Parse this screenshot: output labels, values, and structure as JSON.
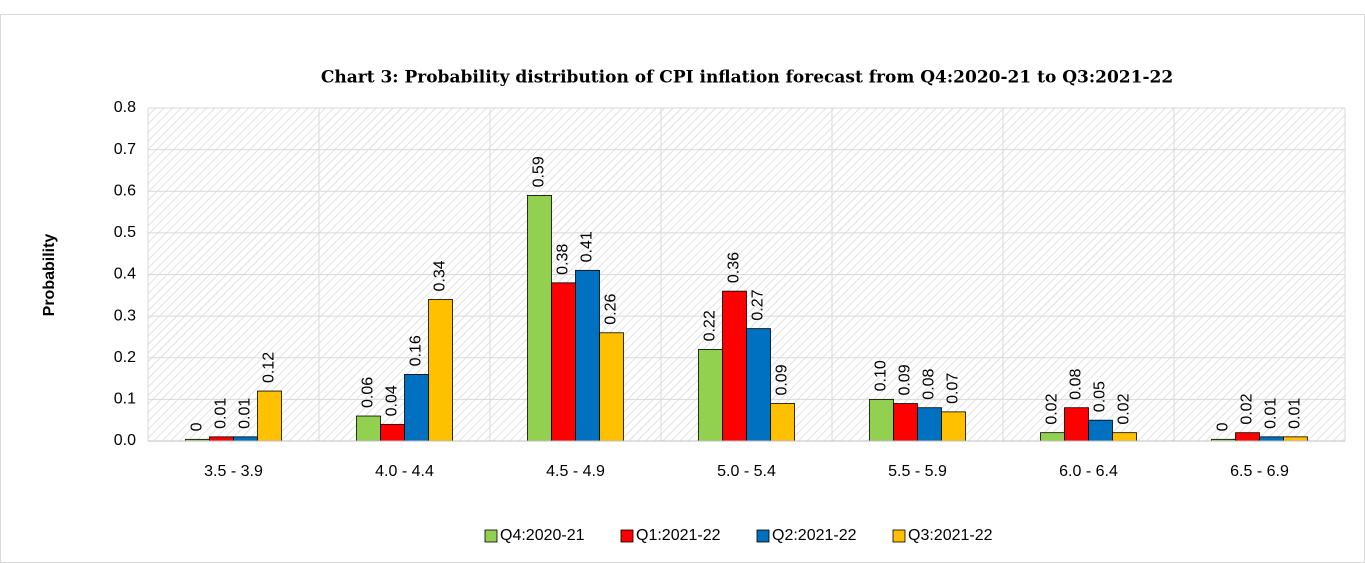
{
  "chart_data": {
    "type": "bar",
    "title": "Chart 3: Probability distribution of  CPI inflation forecast from Q4:2020-21 to Q3:2021-22",
    "y_label": "Probability",
    "categories": [
      "3.5 - 3.9",
      "4.0 - 4.4",
      "4.5 - 4.9",
      "5.0 - 5.4",
      "5.5 - 5.9",
      "6.0 - 6.4",
      "6.5 - 6.9"
    ],
    "series": [
      {
        "name": "Q4:2020-21",
        "color": "#92d050",
        "values": [
          0.004,
          0.06,
          0.59,
          0.22,
          0.1,
          0.02,
          0.004
        ],
        "value_labels": [
          "0",
          "0.06",
          "0.59",
          "0.22",
          "0.10",
          "0.02",
          "0"
        ]
      },
      {
        "name": "Q1:2021-22",
        "color": "#ff0000",
        "values": [
          0.01,
          0.04,
          0.38,
          0.36,
          0.09,
          0.08,
          0.02
        ]
      },
      {
        "name": "Q2:2021-22",
        "color": "#0070c0",
        "values": [
          0.01,
          0.16,
          0.41,
          0.27,
          0.08,
          0.05,
          0.01
        ]
      },
      {
        "name": "Q3:2021-22",
        "color": "#ffc000",
        "values": [
          0.12,
          0.34,
          0.26,
          0.09,
          0.07,
          0.02,
          0.01
        ]
      }
    ],
    "ylim": [
      0,
      0.8
    ],
    "yticks": [
      {
        "value": 0,
        "label": "0.0"
      },
      0.1,
      0.2,
      0.3,
      0.4,
      0.5,
      0.6,
      0.7,
      0.8
    ],
    "grid": true,
    "legend": "bottom"
  }
}
